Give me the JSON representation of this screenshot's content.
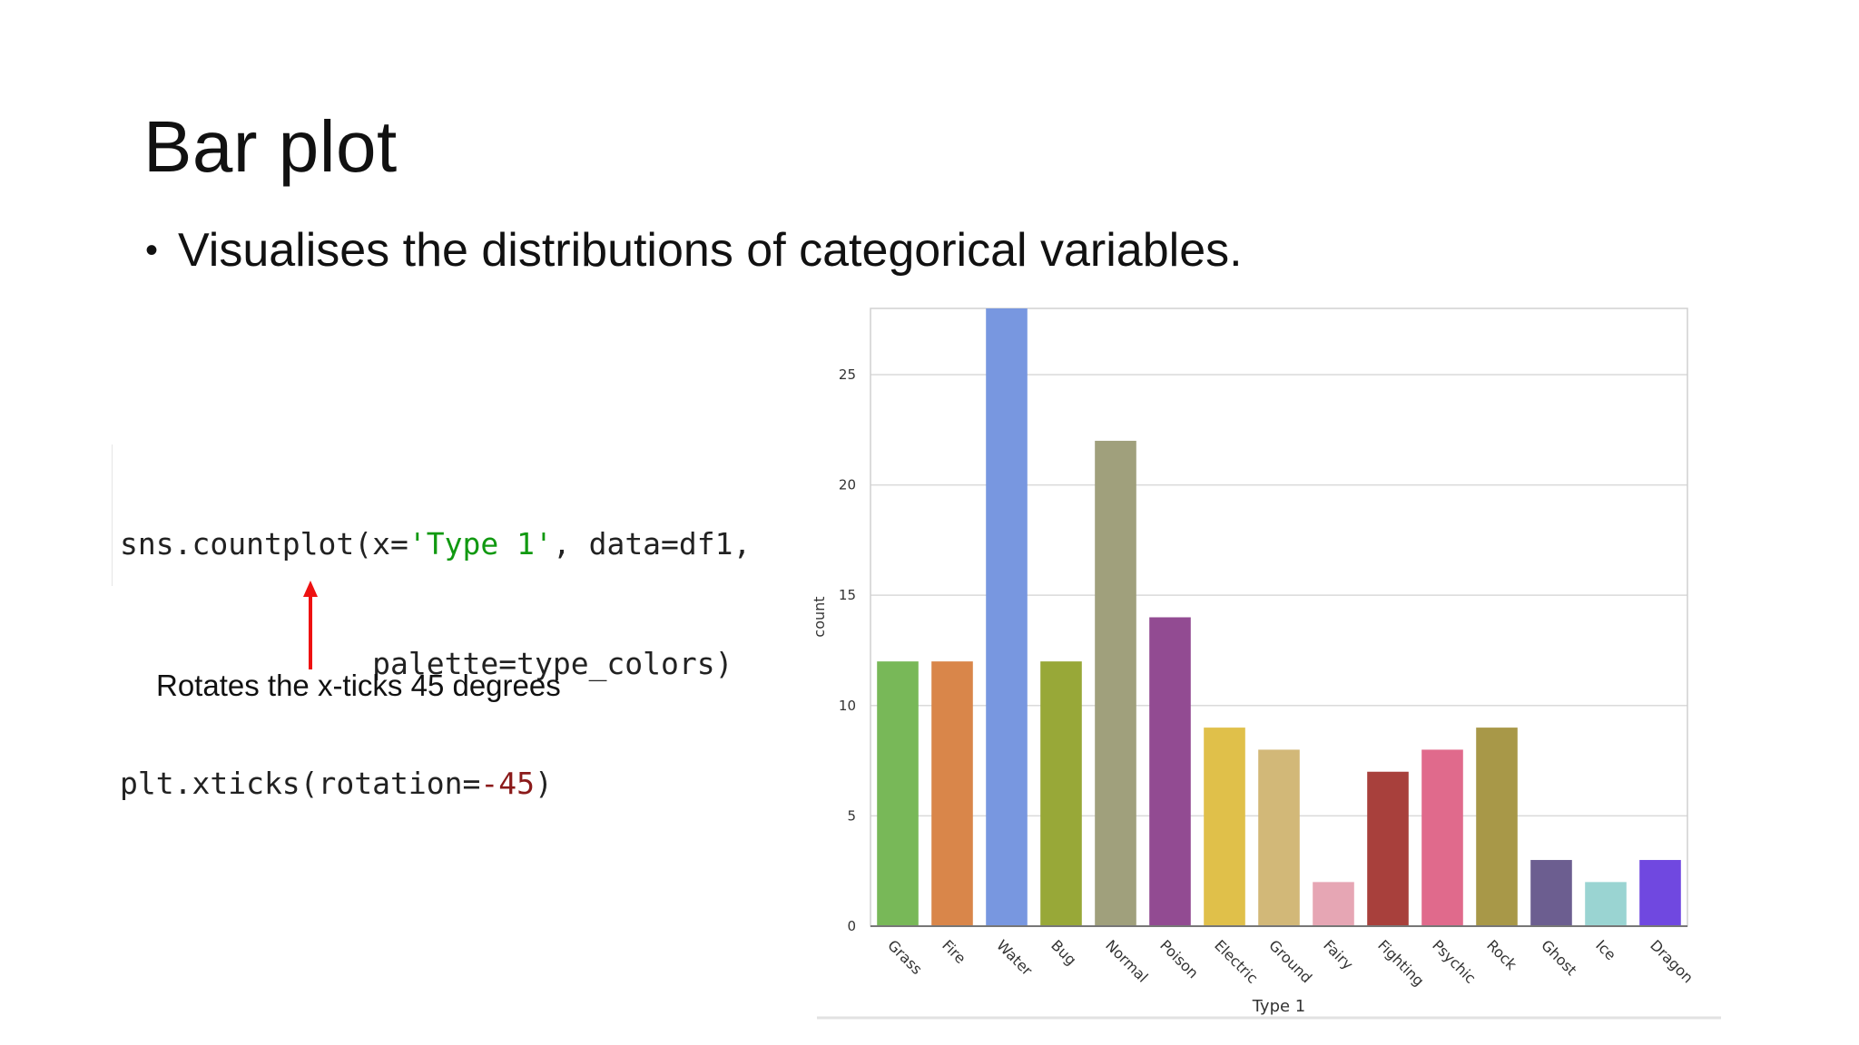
{
  "slide": {
    "title": "Bar plot",
    "bullet": "Visualises the distributions of categorical variables.",
    "annotation": "Rotates the x-ticks 45 degrees"
  },
  "code": {
    "line1": {
      "prefix": "sns.countplot(x=",
      "string": "'Type 1'",
      "suffix": ", data=df1,"
    },
    "line2": "palette=type_colors)",
    "line3": {
      "prefix": "plt.xticks(rotation=",
      "number": "-45",
      "suffix": ")"
    },
    "colors": {
      "string": "#119911",
      "number": "#8b1a1a"
    }
  },
  "chart_data": {
    "type": "bar",
    "xlabel": "Type 1",
    "ylabel": "count",
    "ylim": [
      0,
      28
    ],
    "yticks": [
      0,
      5,
      10,
      15,
      20,
      25
    ],
    "grid": true,
    "tick_rotation": -45,
    "categories": [
      "Grass",
      "Fire",
      "Water",
      "Bug",
      "Normal",
      "Poison",
      "Electric",
      "Ground",
      "Fairy",
      "Fighting",
      "Psychic",
      "Rock",
      "Ghost",
      "Ice",
      "Dragon"
    ],
    "values": [
      12,
      12,
      28,
      12,
      22,
      14,
      9,
      8,
      2,
      7,
      8,
      9,
      3,
      2,
      3
    ],
    "colors": [
      "#78b858",
      "#d9864a",
      "#7897e0",
      "#98a838",
      "#a0a07c",
      "#924b92",
      "#e0c04a",
      "#d2b878",
      "#e6a6b4",
      "#a8403c",
      "#e06a8c",
      "#a89848",
      "#6c5e90",
      "#9ad4d2",
      "#7048e0"
    ]
  }
}
